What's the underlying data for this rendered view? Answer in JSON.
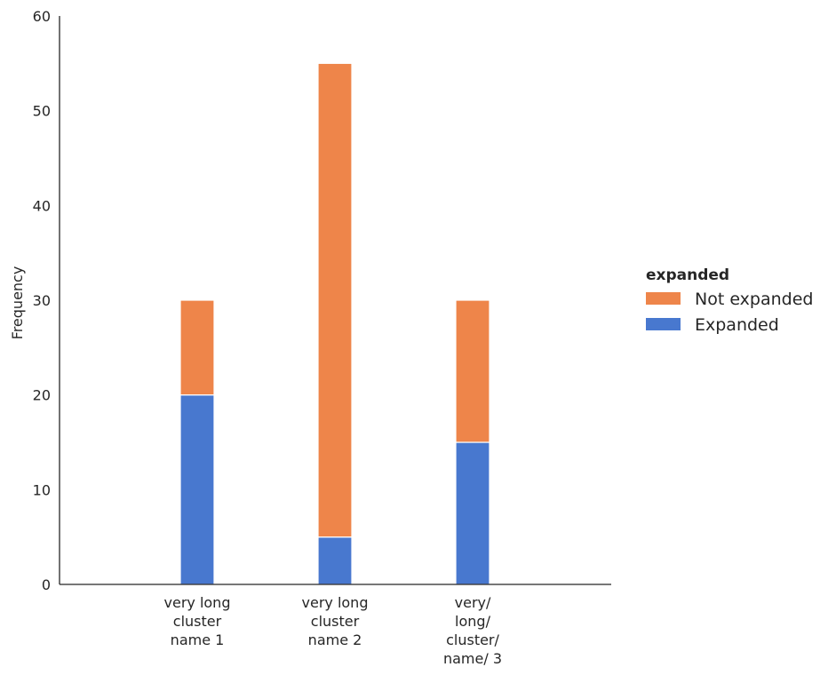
{
  "chart_data": {
    "type": "bar",
    "stacked": true,
    "categories": [
      [
        "very long",
        "cluster",
        "name 1"
      ],
      [
        "very long",
        "cluster",
        "name 2"
      ],
      [
        "very/",
        "long/",
        "cluster/",
        "name/ 3"
      ]
    ],
    "series": [
      {
        "name": "Expanded",
        "values": [
          20,
          5,
          15
        ],
        "color": "#4878cf"
      },
      {
        "name": "Not expanded",
        "values": [
          10,
          50,
          15
        ],
        "color": "#ee854a"
      }
    ],
    "ylabel": "Frequency",
    "xlabel": "",
    "ylim": [
      0,
      60
    ],
    "yticks": [
      0,
      10,
      20,
      30,
      40,
      50,
      60
    ],
    "grid": false,
    "legend": {
      "title": "expanded",
      "placement": "right",
      "entries": [
        {
          "label": "Not expanded",
          "color": "#ee854a"
        },
        {
          "label": "Expanded",
          "color": "#4878cf"
        }
      ]
    }
  }
}
